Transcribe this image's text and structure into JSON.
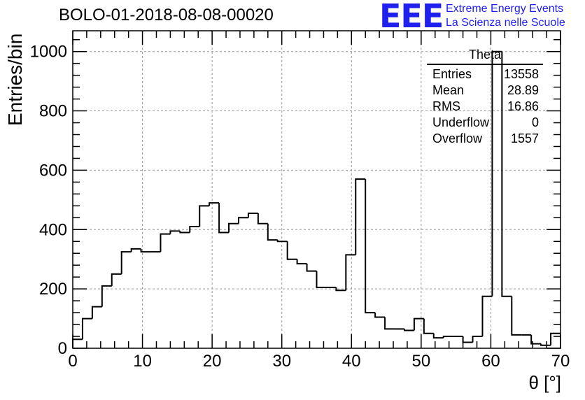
{
  "header": {
    "title": "BOLO-01-2018-08-08-00020",
    "logo_text": "EEE",
    "logo_line1": "Extreme Energy Events",
    "logo_line2": "La Scienza nelle Scuole"
  },
  "stats": {
    "name": "Theta",
    "rows": [
      {
        "label": "Entries",
        "value": "13558"
      },
      {
        "label": "Mean",
        "value": "28.89"
      },
      {
        "label": "RMS",
        "value": "16.86"
      },
      {
        "label": "Underflow",
        "value": "0"
      },
      {
        "label": "Overflow",
        "value": "1557"
      }
    ]
  },
  "chart_data": {
    "type": "histogram",
    "title": "BOLO-01-2018-08-08-00020",
    "xlabel": "θ [°]",
    "ylabel": "Entries/bin",
    "xlim": [
      0,
      70
    ],
    "ylim": [
      0,
      1070
    ],
    "bin_width": 1.4,
    "xticks": [
      0,
      10,
      20,
      30,
      40,
      50,
      60,
      70
    ],
    "yticks": [
      0,
      200,
      400,
      600,
      800,
      1000
    ],
    "grid": true,
    "color": "#000000",
    "values": [
      30,
      100,
      140,
      210,
      250,
      325,
      335,
      325,
      325,
      385,
      395,
      390,
      410,
      480,
      490,
      390,
      420,
      440,
      455,
      420,
      365,
      360,
      300,
      285,
      260,
      205,
      205,
      195,
      315,
      570,
      120,
      105,
      65,
      65,
      60,
      100,
      50,
      35,
      40,
      40,
      20,
      40,
      175,
      1000,
      175,
      45,
      45,
      15,
      10,
      50
    ]
  }
}
